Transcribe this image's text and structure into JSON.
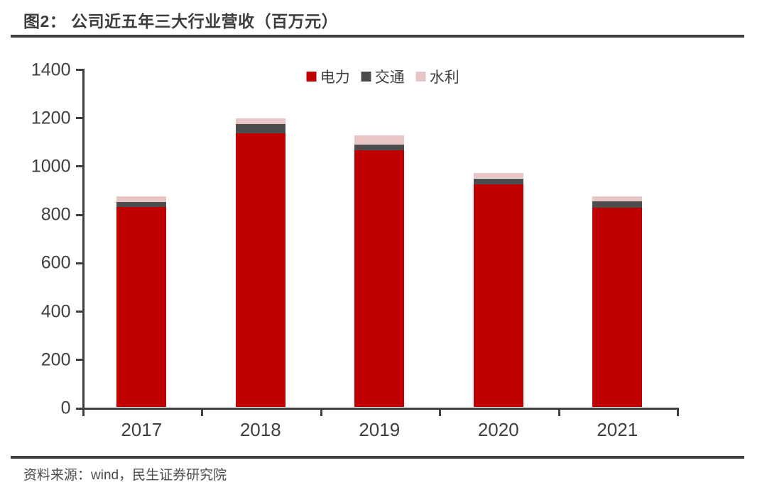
{
  "page": {
    "title": "图2：  公司近五年三大行业营收（百万元）"
  },
  "footer": {
    "source": "资料来源：wind，民生证券研究院"
  },
  "chart_data": {
    "type": "bar",
    "stacked": true,
    "title": "图2：公司近五年三大行业营收（百万元）",
    "unit": "百万元",
    "categories": [
      "2017",
      "2018",
      "2019",
      "2020",
      "2021"
    ],
    "series": [
      {
        "name": "电力",
        "color": "#c00000",
        "values": [
          829,
          1132,
          1062,
          921,
          824
        ]
      },
      {
        "name": "交通",
        "color": "#4d4d4d",
        "values": [
          19,
          38,
          25,
          26,
          29
        ]
      },
      {
        "name": "水利",
        "color": "#e8c6c6",
        "values": [
          23,
          24,
          38,
          21,
          18
        ]
      }
    ],
    "totals": [
      871,
      1194,
      1125,
      968,
      871
    ],
    "ylim": [
      0,
      1400
    ],
    "ytick_step": 200,
    "yticks": [
      0,
      200,
      400,
      600,
      800,
      1000,
      1200,
      1400
    ],
    "grid": false,
    "legend_position": "top-center",
    "axis_color": "#404040"
  }
}
